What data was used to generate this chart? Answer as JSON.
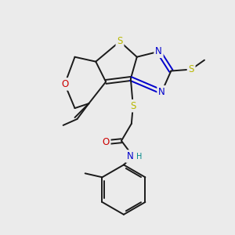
{
  "bg_color": "#ebebeb",
  "bond_color": "#1a1a1a",
  "bond_width": 1.4,
  "figsize": [
    3.0,
    3.0
  ],
  "dpi": 100,
  "atom_colors": {
    "S": "#b8b800",
    "N": "#0000cc",
    "O": "#cc0000",
    "C": "#1a1a1a"
  }
}
